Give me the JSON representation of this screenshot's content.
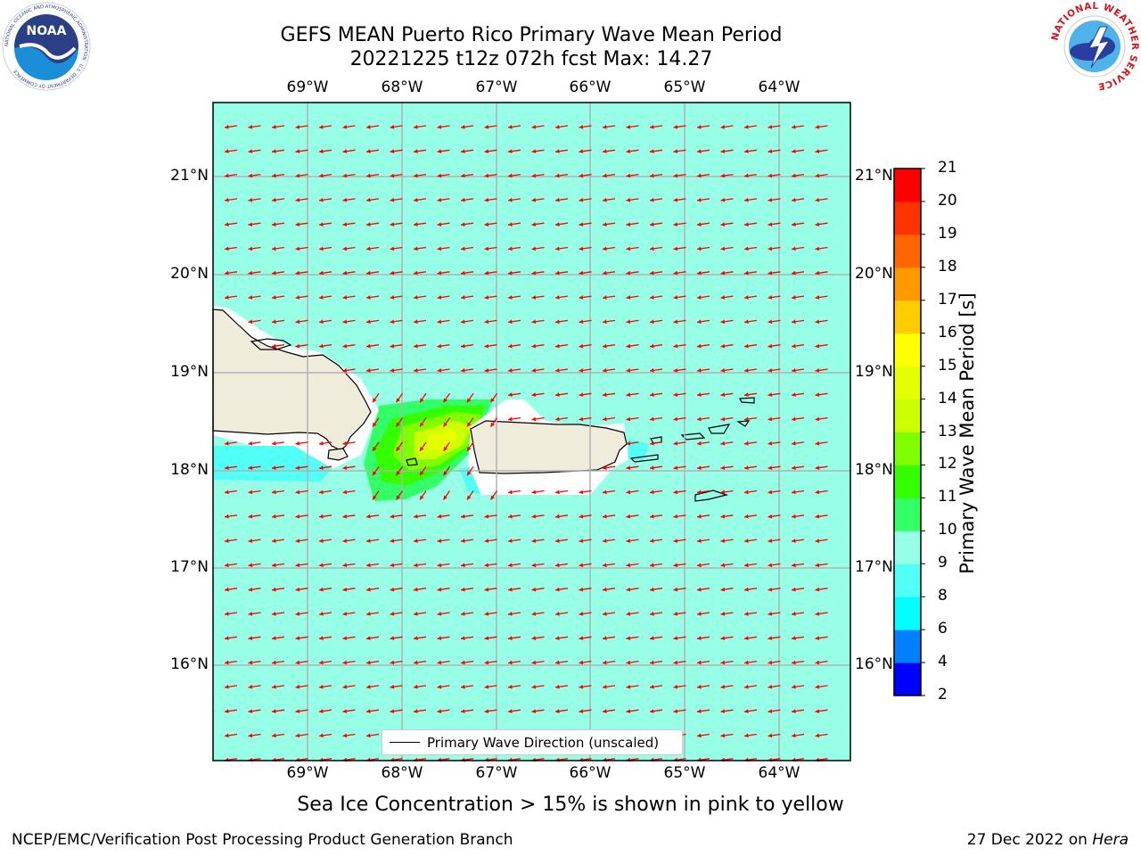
{
  "header": {
    "title_line1": "GEFS MEAN Puerto Rico Primary Wave Mean Period",
    "title_line2": "20221225 t12z 072h fcst   Max: 14.27"
  },
  "logos": {
    "noaa_text": "NOAA",
    "noaa_ring_text": "NATIONAL OCEANIC AND ATMOSPHERIC ADMINISTRATION · U.S. DEPARTMENT OF COMMERCE",
    "nws_ring_text": "NATIONAL WEATHER SERVICE"
  },
  "map": {
    "lon_ticks": [
      "69°W",
      "68°W",
      "67°W",
      "66°W",
      "65°W",
      "64°W"
    ],
    "lat_ticks": [
      "21°N",
      "20°N",
      "19°N",
      "18°N",
      "17°N",
      "16°N"
    ],
    "background_color": "#97ffe6",
    "arrow_color": "#ff0000",
    "land_color": "#efecdc",
    "legend_label": "Primary Wave Direction (unscaled)"
  },
  "colorbar": {
    "label": "Primary Wave Mean Period [s]",
    "tick_labels": [
      "2",
      "4",
      "6",
      "8",
      "9",
      "10",
      "11",
      "12",
      "13",
      "14",
      "15",
      "16",
      "17",
      "18",
      "19",
      "20",
      "21"
    ],
    "colors": [
      "#0000ff",
      "#0080ff",
      "#00ffff",
      "#52fff6",
      "#97ffe6",
      "#33ff66",
      "#33ff00",
      "#80ff00",
      "#ccff00",
      "#e6ff00",
      "#ffff00",
      "#ffcc00",
      "#ff9900",
      "#ff6600",
      "#ff3300",
      "#ff0000"
    ]
  },
  "caption": "Sea Ice Concentration > 15% is shown in pink to yellow",
  "footer": {
    "left": "NCEP/EMC/Verification Post Processing Product Generation Branch",
    "right_date": "27 Dec 2022 on ",
    "right_machine": "Hera"
  }
}
